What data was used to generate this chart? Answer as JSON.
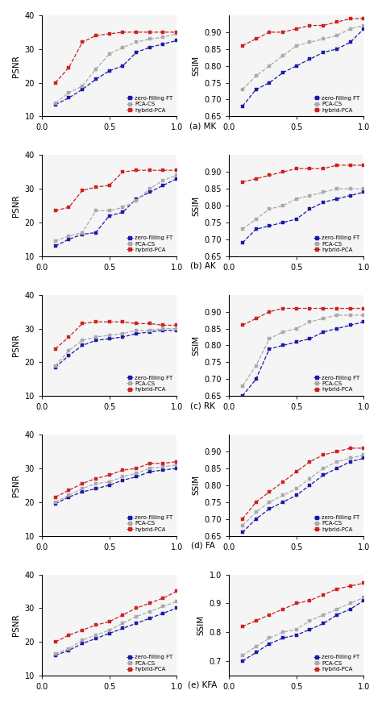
{
  "x_vals": [
    0.1,
    0.2,
    0.3,
    0.4,
    0.5,
    0.6,
    0.7,
    0.8,
    0.9,
    1.0
  ],
  "rows": [
    {
      "label": "(a) MK",
      "psnr": {
        "zero_ft": [
          13.5,
          15.5,
          18.0,
          21.0,
          23.5,
          25.0,
          29.0,
          30.5,
          31.5,
          32.5
        ],
        "pca_cs": [
          14.0,
          17.0,
          19.0,
          24.0,
          28.5,
          30.5,
          32.0,
          33.0,
          33.5,
          34.5
        ],
        "hybrid": [
          20.0,
          24.5,
          32.0,
          34.0,
          34.5,
          35.0,
          35.0,
          35.0,
          35.0,
          35.0
        ]
      },
      "ssim": {
        "zero_ft": [
          0.68,
          0.73,
          0.75,
          0.78,
          0.8,
          0.82,
          0.84,
          0.85,
          0.87,
          0.91
        ],
        "pca_cs": [
          0.73,
          0.77,
          0.8,
          0.83,
          0.86,
          0.87,
          0.88,
          0.89,
          0.91,
          0.92
        ],
        "hybrid": [
          0.86,
          0.88,
          0.9,
          0.9,
          0.91,
          0.92,
          0.92,
          0.93,
          0.94,
          0.94
        ]
      },
      "ssim_ylim": [
        0.65,
        0.95
      ],
      "ssim_yticks": [
        0.65,
        0.7,
        0.75,
        0.8,
        0.85,
        0.9
      ]
    },
    {
      "label": "(b) AK",
      "psnr": {
        "zero_ft": [
          13.0,
          15.0,
          16.5,
          17.0,
          22.0,
          23.0,
          27.0,
          29.0,
          31.0,
          33.0
        ],
        "pca_cs": [
          14.5,
          16.0,
          17.0,
          23.5,
          23.5,
          24.5,
          26.5,
          30.0,
          32.5,
          34.0
        ],
        "hybrid": [
          23.5,
          24.5,
          29.5,
          30.5,
          31.0,
          35.0,
          35.5,
          35.5,
          35.5,
          35.5
        ]
      },
      "ssim": {
        "zero_ft": [
          0.69,
          0.73,
          0.74,
          0.75,
          0.76,
          0.79,
          0.81,
          0.82,
          0.83,
          0.84
        ],
        "pca_cs": [
          0.73,
          0.76,
          0.79,
          0.8,
          0.82,
          0.83,
          0.84,
          0.85,
          0.85,
          0.85
        ],
        "hybrid": [
          0.87,
          0.88,
          0.89,
          0.9,
          0.91,
          0.91,
          0.91,
          0.92,
          0.92,
          0.92
        ]
      },
      "ssim_ylim": [
        0.65,
        0.95
      ],
      "ssim_yticks": [
        0.65,
        0.7,
        0.75,
        0.8,
        0.85,
        0.9
      ]
    },
    {
      "label": "(c) RK",
      "psnr": {
        "zero_ft": [
          18.5,
          22.0,
          25.0,
          26.5,
          27.0,
          27.5,
          28.5,
          29.0,
          29.5,
          29.5
        ],
        "pca_cs": [
          19.0,
          23.5,
          26.5,
          27.5,
          28.0,
          28.5,
          29.5,
          29.5,
          30.0,
          30.0
        ],
        "hybrid": [
          24.0,
          27.5,
          31.5,
          32.0,
          32.0,
          32.0,
          31.5,
          31.5,
          31.0,
          31.0
        ]
      },
      "ssim": {
        "zero_ft": [
          0.65,
          0.7,
          0.79,
          0.8,
          0.81,
          0.82,
          0.84,
          0.85,
          0.86,
          0.87
        ],
        "pca_cs": [
          0.68,
          0.74,
          0.82,
          0.84,
          0.85,
          0.87,
          0.88,
          0.89,
          0.89,
          0.89
        ],
        "hybrid": [
          0.86,
          0.88,
          0.9,
          0.91,
          0.91,
          0.91,
          0.91,
          0.91,
          0.91,
          0.91
        ]
      },
      "ssim_ylim": [
        0.65,
        0.95
      ],
      "ssim_yticks": [
        0.65,
        0.7,
        0.75,
        0.8,
        0.85,
        0.9
      ]
    },
    {
      "label": "(d) FA",
      "psnr": {
        "zero_ft": [
          19.5,
          21.5,
          23.0,
          24.0,
          25.0,
          26.5,
          27.5,
          29.0,
          29.5,
          30.0
        ],
        "pca_cs": [
          20.0,
          22.0,
          24.0,
          25.5,
          26.0,
          27.5,
          28.5,
          30.0,
          30.5,
          31.0
        ],
        "hybrid": [
          21.5,
          23.5,
          25.5,
          27.0,
          28.0,
          29.5,
          30.0,
          31.5,
          31.5,
          32.0
        ]
      },
      "ssim": {
        "zero_ft": [
          0.66,
          0.7,
          0.73,
          0.75,
          0.77,
          0.8,
          0.83,
          0.85,
          0.87,
          0.88
        ],
        "pca_cs": [
          0.68,
          0.72,
          0.75,
          0.77,
          0.79,
          0.82,
          0.85,
          0.87,
          0.88,
          0.89
        ],
        "hybrid": [
          0.7,
          0.75,
          0.78,
          0.81,
          0.84,
          0.87,
          0.89,
          0.9,
          0.91,
          0.91
        ]
      },
      "ssim_ylim": [
        0.65,
        0.95
      ],
      "ssim_yticks": [
        0.65,
        0.7,
        0.75,
        0.8,
        0.85,
        0.9
      ]
    },
    {
      "label": "(e) KFA",
      "psnr": {
        "zero_ft": [
          16.0,
          17.5,
          19.5,
          21.0,
          22.5,
          24.0,
          25.5,
          27.0,
          28.5,
          30.0
        ],
        "pca_cs": [
          16.5,
          18.0,
          20.5,
          22.0,
          23.5,
          25.5,
          27.5,
          29.0,
          30.5,
          32.0
        ],
        "hybrid": [
          20.0,
          22.0,
          23.5,
          25.0,
          26.0,
          28.0,
          30.0,
          31.5,
          33.0,
          35.0
        ]
      },
      "ssim": {
        "zero_ft": [
          0.7,
          0.73,
          0.76,
          0.78,
          0.79,
          0.81,
          0.83,
          0.86,
          0.88,
          0.91
        ],
        "pca_cs": [
          0.72,
          0.75,
          0.78,
          0.8,
          0.81,
          0.84,
          0.86,
          0.88,
          0.9,
          0.92
        ],
        "hybrid": [
          0.82,
          0.84,
          0.86,
          0.88,
          0.9,
          0.91,
          0.93,
          0.95,
          0.96,
          0.97
        ]
      },
      "ssim_ylim": [
        0.65,
        1.0
      ],
      "ssim_yticks": [
        0.7,
        0.8,
        0.9,
        1.0
      ]
    }
  ],
  "color_zero": "#1a1aaa",
  "color_pca": "#aaaaaa",
  "color_hybrid": "#cc2222",
  "psnr_ylim": [
    10,
    40
  ],
  "psnr_yticks": [
    10,
    20,
    30,
    40
  ],
  "xlim": [
    0,
    1.0
  ],
  "xticks": [
    0,
    0.5,
    1
  ]
}
